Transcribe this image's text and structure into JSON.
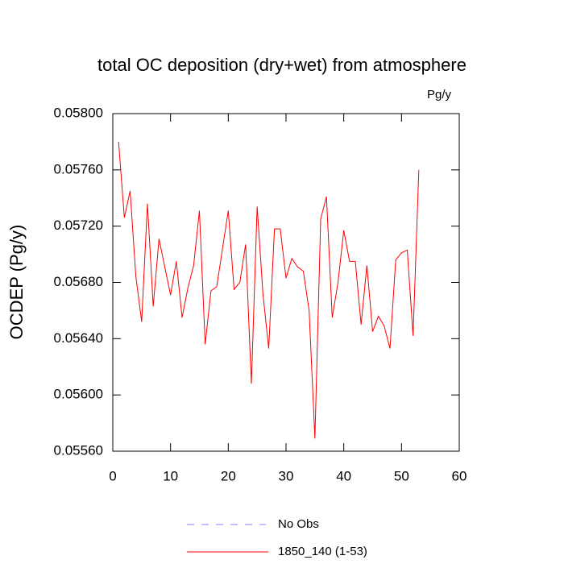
{
  "chart_data": {
    "type": "line",
    "title": "total OC deposition (dry+wet) from atmosphere",
    "units": "Pg/y",
    "ylabel": "OCDEP  (Pg/y)",
    "x": [
      1,
      2,
      3,
      4,
      5,
      6,
      7,
      8,
      9,
      10,
      11,
      12,
      13,
      14,
      15,
      16,
      17,
      18,
      19,
      20,
      21,
      22,
      23,
      24,
      25,
      26,
      27,
      28,
      29,
      30,
      31,
      32,
      33,
      34,
      35,
      36,
      37,
      38,
      39,
      40,
      41,
      42,
      43,
      44,
      45,
      46,
      47,
      48,
      49,
      50,
      51,
      52,
      53
    ],
    "series": [
      {
        "name": "1850_140 (1-53)",
        "color": "#ff0000",
        "values": [
          0.0578,
          0.05726,
          0.05745,
          0.05684,
          0.05652,
          0.05736,
          0.05663,
          0.05711,
          0.05691,
          0.05671,
          0.05695,
          0.05655,
          0.05676,
          0.05692,
          0.05731,
          0.05636,
          0.05674,
          0.05677,
          0.05704,
          0.05731,
          0.05675,
          0.0568,
          0.05707,
          0.05608,
          0.05734,
          0.05672,
          0.05633,
          0.05718,
          0.05718,
          0.05683,
          0.05697,
          0.05691,
          0.05688,
          0.0566,
          0.05569,
          0.05725,
          0.05741,
          0.05655,
          0.0568,
          0.05717,
          0.05695,
          0.05695,
          0.0565,
          0.05692,
          0.05645,
          0.05656,
          0.05649,
          0.05633,
          0.05696,
          0.05701,
          0.05703,
          0.05642,
          0.0576
        ]
      }
    ],
    "obs": {
      "name": "No Obs",
      "color": "#8080ff",
      "dashed": true
    },
    "xlim": [
      0,
      60
    ],
    "xticks": [
      0,
      10,
      20,
      30,
      40,
      50,
      60
    ],
    "ylim": [
      0.0556,
      0.058
    ],
    "yticks": [
      {
        "value": 0.0556,
        "label": "0.05560"
      },
      {
        "value": 0.056,
        "label": "0.05600"
      },
      {
        "value": 0.0564,
        "label": "0.05640"
      },
      {
        "value": 0.0568,
        "label": "0.05680"
      },
      {
        "value": 0.0572,
        "label": "0.05720"
      },
      {
        "value": 0.0576,
        "label": "0.05760"
      },
      {
        "value": 0.058,
        "label": "0.05800"
      }
    ]
  }
}
